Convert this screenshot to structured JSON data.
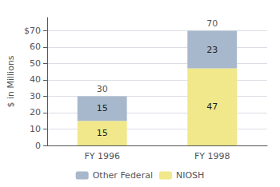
{
  "chart_data": {
    "type": "bar",
    "categories": [
      "FY 1996",
      "FY 1998"
    ],
    "series": [
      {
        "name": "Other Federal",
        "color": "#a8b8cc",
        "values": [
          15,
          23
        ]
      },
      {
        "name": "NIOSH",
        "color": "#f0e88a",
        "values": [
          15,
          47
        ]
      }
    ],
    "totals": [
      30,
      70
    ],
    "stacked": true,
    "data_labels": true,
    "ylabel": "$ in Millions",
    "ylim": [
      0,
      78
    ],
    "yticks": [
      0,
      10,
      20,
      30,
      40,
      50,
      60,
      {
        "value": 70,
        "label": "$70"
      }
    ],
    "grid": true,
    "legend": "bottom"
  }
}
